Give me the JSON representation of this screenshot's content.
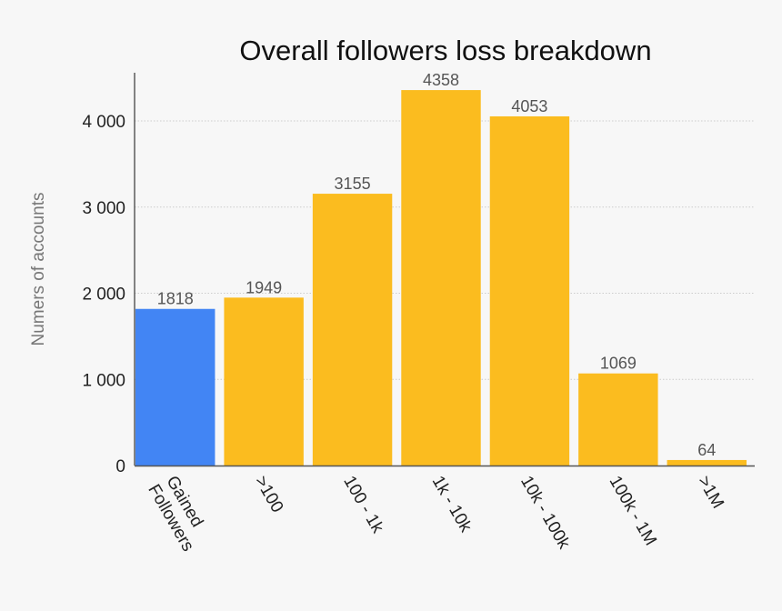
{
  "chart_data": {
    "type": "bar",
    "title": "Overall followers loss breakdown",
    "xlabel": "",
    "ylabel": "Numers of accounts",
    "categories": [
      "Gained Followers",
      ">100",
      "100 - 1k",
      "1k - 10k",
      "10k - 100k",
      "100k - 1M",
      ">1M"
    ],
    "values": [
      1818,
      1949,
      3155,
      4358,
      4053,
      1069,
      64
    ],
    "data_labels": [
      "1818",
      "1949",
      "3155",
      "4358",
      "4053",
      "1069",
      "64"
    ],
    "colors": [
      "#4285f4",
      "#fbbc1f",
      "#fbbc1f",
      "#fbbc1f",
      "#fbbc1f",
      "#fbbc1f",
      "#fbbc1f"
    ],
    "ylim": [
      0,
      4500
    ],
    "yticks": [
      0,
      1000,
      2000,
      3000,
      4000
    ],
    "ytick_labels": [
      "0",
      "1 000",
      "2 000",
      "3 000",
      "4 000"
    ],
    "grid": true,
    "legend": "none"
  }
}
